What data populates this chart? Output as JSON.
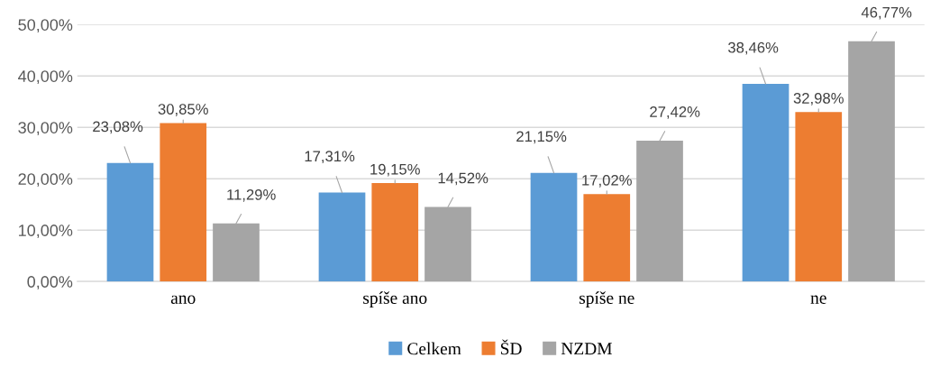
{
  "chart_data": {
    "type": "bar",
    "categories": [
      "ano",
      "spíše ano",
      "spíše ne",
      "ne"
    ],
    "series": [
      {
        "name": "Celkem",
        "color": "#5b9bd5",
        "values": [
          23.08,
          17.31,
          21.15,
          38.46
        ],
        "value_labels": [
          "23,08%",
          "17,31%",
          "21,15%",
          "38,46%"
        ]
      },
      {
        "name": "ŠD",
        "color": "#ed7d31",
        "values": [
          30.85,
          19.15,
          17.02,
          32.98
        ],
        "value_labels": [
          "30,85%",
          "19,15%",
          "17,02%",
          "32,98%"
        ]
      },
      {
        "name": "NZDM",
        "color": "#a5a5a5",
        "values": [
          11.29,
          14.52,
          27.42,
          46.77
        ],
        "value_labels": [
          "11,29%",
          "14,52%",
          "27,42%",
          "46,77%"
        ]
      }
    ],
    "ylim": [
      0,
      50
    ],
    "yticks": [
      {
        "value": 0,
        "label": "0,00%"
      },
      {
        "value": 10,
        "label": "10,00%"
      },
      {
        "value": 20,
        "label": "20,00%"
      },
      {
        "value": 30,
        "label": "30,00%"
      },
      {
        "value": 40,
        "label": "40,00%"
      },
      {
        "value": 50,
        "label": "50,00%"
      }
    ],
    "grid": "y",
    "legend": "bottom"
  }
}
